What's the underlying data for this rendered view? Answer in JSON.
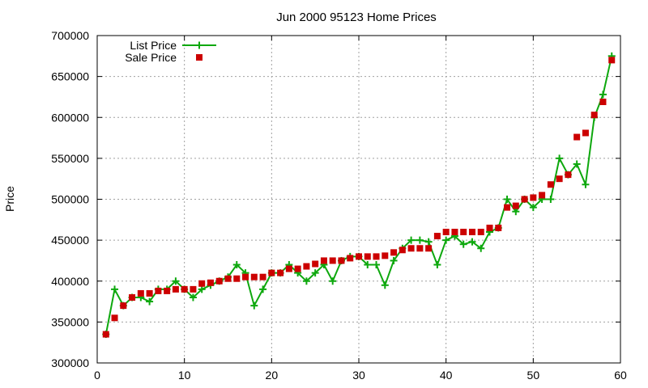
{
  "chart_data": {
    "type": "line",
    "title": "Jun 2000 95123 Home Prices",
    "xlabel": "",
    "ylabel": "Price",
    "xlim": [
      0,
      60
    ],
    "ylim": [
      300000,
      700000
    ],
    "xticks": [
      0,
      10,
      20,
      30,
      40,
      50,
      60
    ],
    "yticks": [
      300000,
      350000,
      400000,
      450000,
      500000,
      550000,
      600000,
      650000,
      700000
    ],
    "grid": true,
    "legend_position": "top-left",
    "series": [
      {
        "name": "List Price",
        "style": "line-plus",
        "color": "#0ea80e",
        "x": [
          1,
          2,
          3,
          4,
          5,
          6,
          7,
          8,
          9,
          10,
          11,
          12,
          13,
          14,
          15,
          16,
          17,
          18,
          19,
          20,
          21,
          22,
          23,
          24,
          25,
          26,
          27,
          28,
          29,
          30,
          31,
          32,
          33,
          34,
          35,
          36,
          37,
          38,
          39,
          40,
          41,
          42,
          43,
          44,
          45,
          46,
          47,
          48,
          49,
          50,
          51,
          52,
          53,
          54,
          55,
          56,
          57,
          58,
          59
        ],
        "y": [
          335000,
          390000,
          370000,
          380000,
          380000,
          375000,
          390000,
          390000,
          400000,
          390000,
          380000,
          390000,
          395000,
          400000,
          405000,
          420000,
          410000,
          370000,
          390000,
          410000,
          410000,
          420000,
          410000,
          400000,
          410000,
          420000,
          400000,
          425000,
          430000,
          430000,
          420000,
          420000,
          395000,
          425000,
          440000,
          450000,
          450000,
          448000,
          420000,
          450000,
          455000,
          445000,
          448000,
          440000,
          460000,
          465000,
          500000,
          485000,
          500000,
          490000,
          500000,
          500000,
          550000,
          530000,
          543000,
          518000,
          600000,
          628000,
          675000
        ]
      },
      {
        "name": "Sale Price",
        "style": "square",
        "color": "#cc0000",
        "x": [
          1,
          2,
          3,
          4,
          5,
          6,
          7,
          8,
          9,
          10,
          11,
          12,
          13,
          14,
          15,
          16,
          17,
          18,
          19,
          20,
          21,
          22,
          23,
          24,
          25,
          26,
          27,
          28,
          29,
          30,
          31,
          32,
          33,
          34,
          35,
          36,
          37,
          38,
          39,
          40,
          41,
          42,
          43,
          44,
          45,
          46,
          47,
          48,
          49,
          50,
          51,
          52,
          53,
          54,
          55,
          56,
          57,
          58,
          59
        ],
        "y": [
          335000,
          355000,
          370000,
          380000,
          385000,
          385000,
          388000,
          388000,
          390000,
          390000,
          390000,
          397000,
          398000,
          400000,
          403000,
          403000,
          405000,
          405000,
          405000,
          410000,
          410000,
          415000,
          415000,
          418000,
          421000,
          425000,
          425000,
          425000,
          428000,
          430000,
          430000,
          430000,
          431000,
          435000,
          438000,
          440000,
          440000,
          440000,
          455000,
          460000,
          460000,
          460000,
          460000,
          460000,
          465000,
          465000,
          490000,
          492000,
          500000,
          502000,
          505000,
          518000,
          525000,
          530000,
          576000,
          581000,
          603000,
          619000,
          670000
        ]
      }
    ]
  }
}
